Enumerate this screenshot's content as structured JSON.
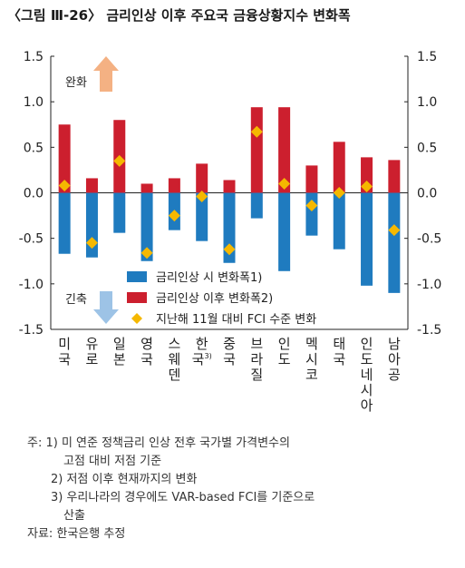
{
  "title": "〈그림 Ⅲ-26〉 금리인상 이후 주요국 금융상황지수 변화폭",
  "chart_data": {
    "type": "bar",
    "categories": [
      "미국",
      "유로",
      "일본",
      "영국",
      "스웨덴",
      "한국",
      "중국",
      "브라질",
      "인도",
      "멕시코",
      "태국",
      "인도네시아",
      "남아공"
    ],
    "category_label_chars": [
      [
        "미",
        "국"
      ],
      [
        "유",
        "로"
      ],
      [
        "일",
        "본"
      ],
      [
        "영",
        "국"
      ],
      [
        "스",
        "웨",
        "덴"
      ],
      [
        "한",
        "국3)"
      ],
      [
        "중",
        "국"
      ],
      [
        "브",
        "라",
        "질"
      ],
      [
        "인",
        "도"
      ],
      [
        "멕",
        "시",
        "코"
      ],
      [
        "태",
        "국"
      ],
      [
        "인",
        "도",
        "네",
        "시",
        "아"
      ],
      [
        "남",
        "아",
        "공"
      ]
    ],
    "series": [
      {
        "name": "금리인상 시 변화폭1)",
        "color": "#1f7bbf",
        "values": [
          -0.67,
          -0.71,
          -0.44,
          -0.75,
          -0.41,
          -0.53,
          -0.77,
          -0.28,
          -0.86,
          -0.47,
          -0.62,
          -1.02,
          -1.1
        ]
      },
      {
        "name": "금리인상 이후 변화폭2)",
        "color": "#cc1f2e",
        "values": [
          0.75,
          0.16,
          0.8,
          0.1,
          0.16,
          0.32,
          0.14,
          0.94,
          0.94,
          0.3,
          0.56,
          0.39,
          0.36
        ]
      },
      {
        "name": "지난해 11월 대비 FCI 수준 변화",
        "color": "#f5b800",
        "values": [
          0.08,
          -0.55,
          0.35,
          -0.66,
          -0.25,
          -0.04,
          -0.62,
          0.67,
          0.1,
          -0.14,
          0.0,
          0.07,
          -0.41
        ]
      }
    ],
    "ylim": [
      -1.5,
      1.5
    ],
    "yticks": [
      "1.5",
      "1.0",
      "0.5",
      "0.0",
      "-0.5",
      "-1.0",
      "-1.5"
    ],
    "annotations": {
      "upper": "완화",
      "lower": "긴축"
    }
  },
  "notes": {
    "line1": "주: 1) 미 연준 정책금리 인상 전후 국가별 가격변수의",
    "line2": "고점 대비 저점 기준",
    "line3": "2) 저점 이후 현재까지의 변화",
    "line4": "3) 우리나라의 경우에도 VAR-based FCI를 기준으로",
    "line5": "산출",
    "source": "자료: 한국은행 추정"
  }
}
